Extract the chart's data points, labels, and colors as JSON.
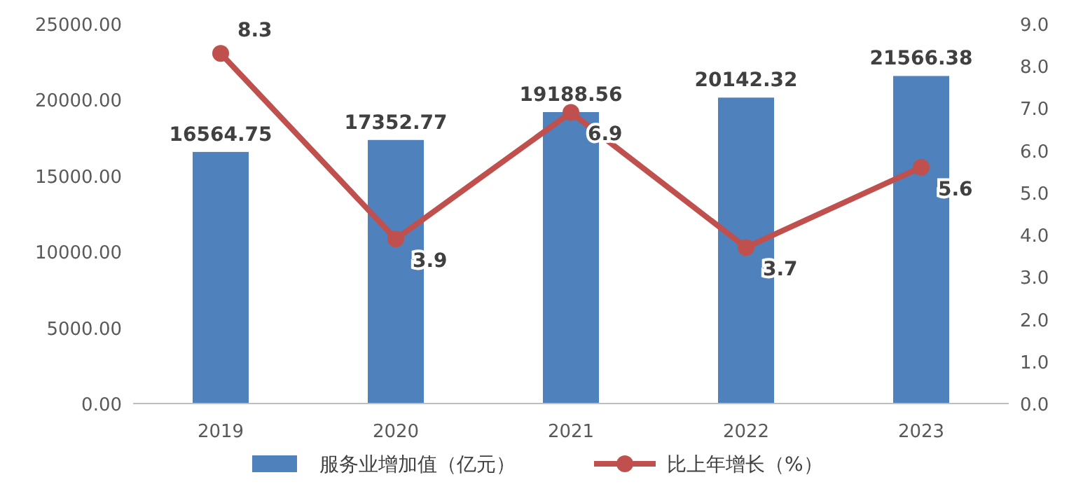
{
  "chart_data": {
    "type": "bar",
    "categories": [
      "2019",
      "2020",
      "2021",
      "2022",
      "2023"
    ],
    "series": [
      {
        "name": "服务业增加值（亿元）",
        "color": "#4f81bd",
        "values": [
          16564.75,
          17352.77,
          19188.56,
          20142.32,
          21566.38
        ]
      },
      {
        "name": "比上年增长（%）",
        "type": "line",
        "axis": "y2",
        "color": "#c0504d",
        "marker": "circle",
        "values": [
          8.3,
          3.9,
          6.9,
          3.7,
          5.6
        ]
      }
    ],
    "ylim": [
      0,
      25000
    ],
    "yticks": [
      {
        "value": 0,
        "label": "0.00"
      },
      {
        "value": 5000,
        "label": "5000.00"
      },
      {
        "value": 10000,
        "label": "10000.00"
      },
      {
        "value": 15000,
        "label": "15000.00"
      },
      {
        "value": 20000,
        "label": "20000.00"
      },
      {
        "value": 25000,
        "label": "25000.00"
      }
    ],
    "y2lim": [
      0,
      9
    ],
    "y2ticks": [
      {
        "value": 0,
        "label": "0.0"
      },
      {
        "value": 1,
        "label": "1.0"
      },
      {
        "value": 2,
        "label": "2.0"
      },
      {
        "value": 3,
        "label": "3.0"
      },
      {
        "value": 4,
        "label": "4.0"
      },
      {
        "value": 5,
        "label": "5.0"
      },
      {
        "value": 6,
        "label": "6.0"
      },
      {
        "value": 7,
        "label": "7.0"
      },
      {
        "value": 8,
        "label": "8.0"
      },
      {
        "value": 9,
        "label": "9.0"
      }
    ],
    "data_labels": true,
    "grid": false,
    "legend": "bottom"
  }
}
